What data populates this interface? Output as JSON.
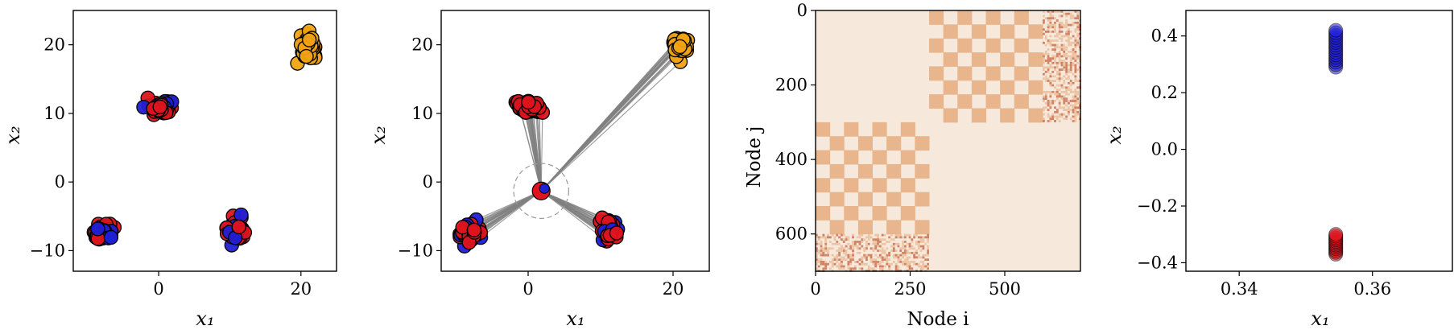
{
  "colors": {
    "cluster_a": "#1f1fd8",
    "cluster_b": "#e0141e",
    "cluster_c": "#f2a414",
    "edge": "#808080",
    "heat_bg": "#f6e9dc",
    "heat_block": "#e8b58c",
    "heat_dark": "#c96a4a"
  },
  "chart_data": [
    {
      "type": "scatter",
      "xlabel": "x₁",
      "ylabel": "x₂",
      "xlim": [
        -12,
        25
      ],
      "ylim": [
        -13,
        25
      ],
      "xticks": [
        0,
        20
      ],
      "yticks": [
        -10,
        0,
        10,
        20
      ],
      "xtick_labels": [
        "0",
        "20"
      ],
      "ytick_labels": [
        "−10",
        "0",
        "10",
        "20"
      ],
      "clusters": [
        {
          "cx": 0.3,
          "cy": 10.8,
          "sx": 1.6,
          "sy": 0.9,
          "n": 55,
          "colors": [
            "cluster_b",
            "cluster_a"
          ]
        },
        {
          "cx": -8,
          "cy": -7.5,
          "sx": 1.3,
          "sy": 1.2,
          "n": 50,
          "colors": [
            "cluster_b",
            "cluster_a"
          ]
        },
        {
          "cx": 11,
          "cy": -7,
          "sx": 1.1,
          "sy": 1.4,
          "n": 55,
          "colors": [
            "cluster_b",
            "cluster_a"
          ]
        },
        {
          "cx": 21,
          "cy": 19.8,
          "sx": 1.0,
          "sy": 1.3,
          "n": 45,
          "colors": [
            "cluster_c"
          ]
        }
      ]
    },
    {
      "type": "scatter",
      "xlabel": "x₁",
      "ylabel": "x₂",
      "xlim": [
        -12,
        25
      ],
      "ylim": [
        -13,
        25
      ],
      "xticks": [
        0,
        20
      ],
      "yticks": [
        -10,
        0,
        10,
        20
      ],
      "xtick_labels": [
        "0",
        "20"
      ],
      "ytick_labels": [
        "−10",
        "0",
        "10",
        "20"
      ],
      "hub": {
        "x": 1.8,
        "y": -1.3,
        "r": 3.8
      },
      "clusters": [
        {
          "cx": 0.3,
          "cy": 10.8,
          "sx": 1.6,
          "sy": 0.9,
          "n": 55,
          "colors": [
            "cluster_b",
            "cluster_a"
          ]
        },
        {
          "cx": -8,
          "cy": -7.5,
          "sx": 1.3,
          "sy": 1.2,
          "n": 50,
          "colors": [
            "cluster_b",
            "cluster_a"
          ]
        },
        {
          "cx": 11,
          "cy": -7,
          "sx": 1.1,
          "sy": 1.4,
          "n": 55,
          "colors": [
            "cluster_b",
            "cluster_a"
          ]
        },
        {
          "cx": 21,
          "cy": 19.8,
          "sx": 1.0,
          "sy": 1.3,
          "n": 45,
          "colors": [
            "cluster_c"
          ]
        }
      ]
    },
    {
      "type": "heatmap",
      "xlabel": "Node i",
      "ylabel": "Node j",
      "xlim": [
        0,
        700
      ],
      "ylim": [
        700,
        0
      ],
      "xticks": [
        0,
        250,
        500
      ],
      "yticks": [
        0,
        200,
        400,
        600
      ],
      "xtick_labels": [
        "0",
        "250",
        "500"
      ],
      "ytick_labels": [
        "0",
        "200",
        "400",
        "600"
      ],
      "blocks": [
        {
          "x0": 300,
          "x1": 600,
          "y0": 0,
          "y1": 300,
          "cells": 8,
          "pattern": "checker"
        },
        {
          "x0": 600,
          "x1": 700,
          "y0": 0,
          "y1": 300,
          "pattern": "noise"
        },
        {
          "x0": 0,
          "x1": 300,
          "y0": 300,
          "y1": 600,
          "cells": 8,
          "pattern": "checker"
        },
        {
          "x0": 0,
          "x1": 300,
          "y0": 600,
          "y1": 700,
          "pattern": "noise"
        }
      ]
    },
    {
      "type": "scatter",
      "xlabel": "x₁",
      "ylabel": "x₂",
      "xlim": [
        0.332,
        0.372
      ],
      "ylim": [
        -0.43,
        0.49
      ],
      "xticks": [
        0.34,
        0.36
      ],
      "yticks": [
        -0.4,
        -0.2,
        0.0,
        0.2,
        0.4
      ],
      "xtick_labels": [
        "0.34",
        "0.36"
      ],
      "ytick_labels": [
        "−0.4",
        "−0.2",
        "0.0",
        "0.2",
        "0.4"
      ],
      "columns": [
        {
          "x": 0.3545,
          "y_from": 0.29,
          "y_to": 0.42,
          "n": 16,
          "color": "cluster_a"
        },
        {
          "x": 0.3545,
          "y_from": -0.37,
          "y_to": -0.3,
          "n": 12,
          "color": "cluster_b"
        }
      ]
    }
  ]
}
